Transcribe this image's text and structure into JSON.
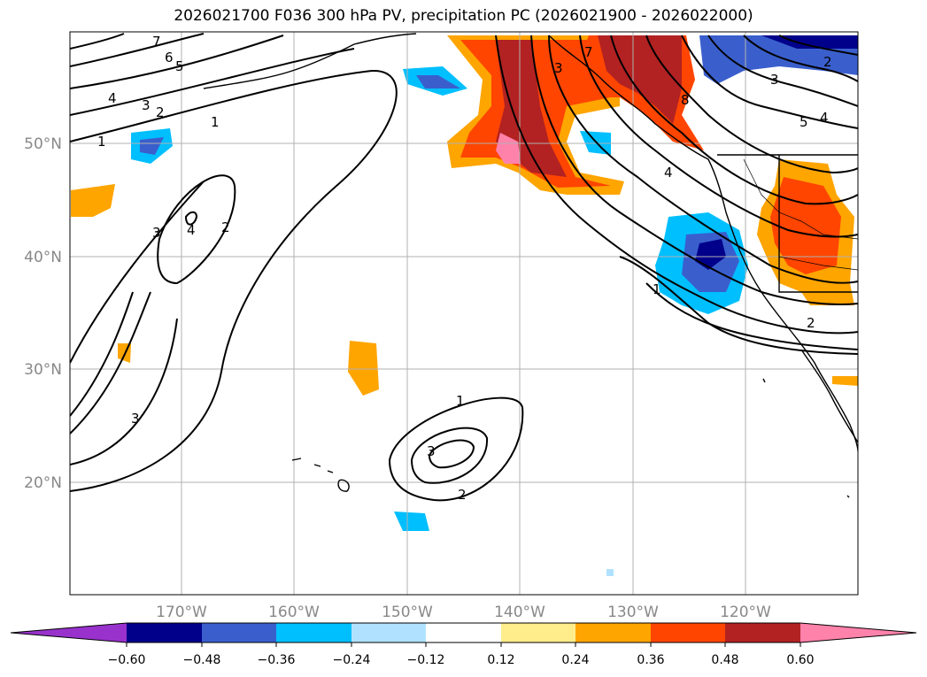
{
  "title": "2026021700 F036 300 hPa PV, precipitation PC (2026021900 - 2026022000)",
  "map": {
    "lat_labels": [
      "50°N",
      "40°N",
      "30°N",
      "20°N"
    ],
    "lon_labels": [
      "170°W",
      "160°W",
      "150°W",
      "140°W",
      "130°W",
      "120°W"
    ],
    "contour_labels": [
      "7",
      "6",
      "5",
      "4",
      "3",
      "2",
      "1",
      "3",
      "4",
      "2",
      "3",
      "1",
      "3",
      "2",
      "3",
      "7",
      "8",
      "1",
      "4",
      "3",
      "5",
      "4",
      "2",
      "1",
      "2"
    ]
  },
  "colorbar": {
    "ticks": [
      "−0.60",
      "−0.48",
      "−0.36",
      "−0.24",
      "−0.12",
      "0.12",
      "0.24",
      "0.36",
      "0.48",
      "0.60"
    ],
    "colors": [
      "#9932cc",
      "#00008b",
      "#3a5fcd",
      "#00bfff",
      "#b0e2ff",
      "#ffffff",
      "#ffec8b",
      "#ffa500",
      "#ff4500",
      "#b22222",
      "#ff82ab"
    ]
  }
}
